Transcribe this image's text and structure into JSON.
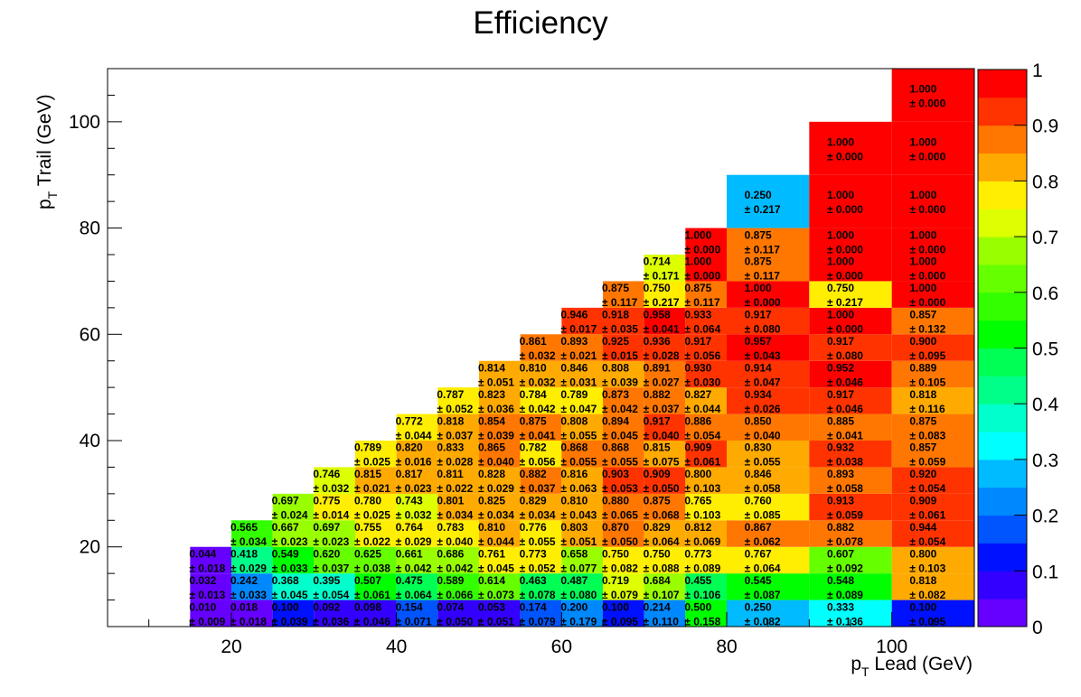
{
  "chart_data": {
    "type": "heatmap",
    "title": "Efficiency",
    "xlabel": {
      "p": "p",
      "sub": "T",
      "rest": " Lead (GeV)"
    },
    "ylabel": {
      "p": "p",
      "sub": "T",
      "rest": " Trail (GeV)"
    },
    "xlim": [
      5,
      110
    ],
    "ylim": [
      5,
      110
    ],
    "zlim": [
      0,
      1
    ],
    "x_ticks": [
      "20",
      "40",
      "60",
      "80",
      "100"
    ],
    "y_ticks": [
      "20",
      "40",
      "60",
      "80",
      "100"
    ],
    "z_ticks": [
      "0",
      "0.1",
      "0.2",
      "0.3",
      "0.4",
      "0.5",
      "0.6",
      "0.7",
      "0.8",
      "0.9",
      "1"
    ],
    "palette": [
      "#6600ff",
      "#3300ff",
      "#0011ff",
      "#0055ff",
      "#0088ff",
      "#00bbff",
      "#00ffff",
      "#00ffcc",
      "#00ff88",
      "#00ff55",
      "#00ff00",
      "#33ff00",
      "#66ff00",
      "#99ff00",
      "#ddff00",
      "#ffee00",
      "#ffaa00",
      "#ff7700",
      "#ff3300",
      "#ff0000"
    ],
    "x_edges": [
      15,
      20,
      25,
      30,
      35,
      40,
      45,
      50,
      55,
      60,
      65,
      70,
      75,
      80,
      90,
      100,
      110
    ],
    "rows": [
      {
        "ylo": 5,
        "yhi": 10,
        "first_col": 0,
        "values": [
          "0.010",
          "0.018",
          "0.100",
          "0.092",
          "0.098",
          "0.154",
          "0.074",
          "0.053",
          "0.174",
          "0.200",
          "0.100",
          "0.214",
          "0.500",
          "0.250",
          "0.333",
          "0.100"
        ],
        "errors": [
          "± 0.009",
          "± 0.018",
          "± 0.039",
          "± 0.036",
          "± 0.046",
          "± 0.071",
          "± 0.050",
          "± 0.051",
          "± 0.079",
          "± 0.179",
          "± 0.095",
          "± 0.110",
          "± 0.158",
          "± 0.082",
          "± 0.136",
          "± 0.095"
        ]
      },
      {
        "ylo": 10,
        "yhi": 15,
        "first_col": 0,
        "values": [
          "0.032",
          "0.242",
          "0.368",
          "0.395",
          "0.507",
          "0.475",
          "0.589",
          "0.614",
          "0.463",
          "0.487",
          "0.719",
          "0.684",
          "0.455",
          "0.545",
          "0.548",
          "0.818"
        ],
        "errors": [
          "± 0.013",
          "± 0.033",
          "± 0.045",
          "± 0.054",
          "± 0.061",
          "± 0.064",
          "± 0.066",
          "± 0.073",
          "± 0.078",
          "± 0.080",
          "± 0.079",
          "± 0.107",
          "± 0.106",
          "± 0.087",
          "± 0.089",
          "± 0.082"
        ]
      },
      {
        "ylo": 15,
        "yhi": 20,
        "first_col": 0,
        "values": [
          "0.044",
          "0.418",
          "0.549",
          "0.620",
          "0.625",
          "0.661",
          "0.686",
          "0.761",
          "0.773",
          "0.658",
          "0.750",
          "0.750",
          "0.773",
          "0.767",
          "0.607",
          "0.800"
        ],
        "errors": [
          "± 0.018",
          "± 0.029",
          "± 0.033",
          "± 0.037",
          "± 0.038",
          "± 0.042",
          "± 0.042",
          "± 0.045",
          "± 0.052",
          "± 0.077",
          "± 0.082",
          "± 0.088",
          "± 0.089",
          "± 0.064",
          "± 0.092",
          "± 0.103"
        ]
      },
      {
        "ylo": 20,
        "yhi": 25,
        "first_col": 1,
        "values": [
          "0.565",
          "0.667",
          "0.697",
          "0.755",
          "0.764",
          "0.783",
          "0.810",
          "0.776",
          "0.803",
          "0.870",
          "0.829",
          "0.812",
          "0.867",
          "0.882",
          "0.944"
        ],
        "errors": [
          "± 0.034",
          "± 0.023",
          "± 0.023",
          "± 0.022",
          "± 0.029",
          "± 0.040",
          "± 0.044",
          "± 0.055",
          "± 0.051",
          "± 0.050",
          "± 0.064",
          "± 0.069",
          "± 0.062",
          "± 0.078",
          "± 0.054"
        ]
      },
      {
        "ylo": 25,
        "yhi": 30,
        "first_col": 2,
        "values": [
          "0.697",
          "0.775",
          "0.780",
          "0.743",
          "0.801",
          "0.825",
          "0.829",
          "0.810",
          "0.880",
          "0.875",
          "0.765",
          "0.760",
          "0.913",
          "0.909"
        ],
        "errors": [
          "± 0.024",
          "± 0.014",
          "± 0.025",
          "± 0.032",
          "± 0.034",
          "± 0.034",
          "± 0.034",
          "± 0.043",
          "± 0.065",
          "± 0.068",
          "± 0.103",
          "± 0.085",
          "± 0.059",
          "± 0.061"
        ]
      },
      {
        "ylo": 30,
        "yhi": 35,
        "first_col": 3,
        "values": [
          "0.746",
          "0.815",
          "0.817",
          "0.811",
          "0.828",
          "0.882",
          "0.816",
          "0.903",
          "0.909",
          "0.800",
          "0.846",
          "0.893",
          "0.920"
        ],
        "errors": [
          "± 0.032",
          "± 0.021",
          "± 0.023",
          "± 0.022",
          "± 0.029",
          "± 0.037",
          "± 0.063",
          "± 0.053",
          "± 0.050",
          "± 0.103",
          "± 0.058",
          "± 0.058",
          "± 0.054"
        ]
      },
      {
        "ylo": 35,
        "yhi": 40,
        "first_col": 4,
        "values": [
          "0.789",
          "0.820",
          "0.833",
          "0.865",
          "0.782",
          "0.868",
          "0.868",
          "0.815",
          "0.909",
          "0.830",
          "0.932",
          "0.857"
        ],
        "errors": [
          "± 0.025",
          "± 0.016",
          "± 0.028",
          "± 0.040",
          "± 0.056",
          "± 0.055",
          "± 0.055",
          "± 0.075",
          "± 0.061",
          "± 0.055",
          "± 0.038",
          "± 0.059"
        ]
      },
      {
        "ylo": 40,
        "yhi": 45,
        "first_col": 5,
        "values": [
          "0.772",
          "0.818",
          "0.854",
          "0.875",
          "0.808",
          "0.894",
          "0.917",
          "0.886",
          "0.850",
          "0.885",
          "0.875"
        ],
        "errors": [
          "± 0.044",
          "± 0.037",
          "± 0.039",
          "± 0.041",
          "± 0.055",
          "± 0.045",
          "± 0.040",
          "± 0.054",
          "± 0.040",
          "± 0.041",
          "± 0.083"
        ]
      },
      {
        "ylo": 45,
        "yhi": 50,
        "first_col": 6,
        "values": [
          "0.787",
          "0.823",
          "0.784",
          "0.789",
          "0.873",
          "0.882",
          "0.827",
          "0.934",
          "0.917",
          "0.818"
        ],
        "errors": [
          "± 0.052",
          "± 0.036",
          "± 0.042",
          "± 0.047",
          "± 0.042",
          "± 0.037",
          "± 0.044",
          "± 0.026",
          "± 0.046",
          "± 0.116"
        ]
      },
      {
        "ylo": 50,
        "yhi": 55,
        "first_col": 7,
        "values": [
          "0.814",
          "0.810",
          "0.846",
          "0.808",
          "0.891",
          "0.930",
          "0.914",
          "0.952",
          "0.889"
        ],
        "errors": [
          "± 0.051",
          "± 0.032",
          "± 0.031",
          "± 0.039",
          "± 0.027",
          "± 0.030",
          "± 0.047",
          "± 0.046",
          "± 0.105"
        ]
      },
      {
        "ylo": 55,
        "yhi": 60,
        "first_col": 8,
        "values": [
          "0.861",
          "0.893",
          "0.925",
          "0.936",
          "0.917",
          "0.957",
          "0.917",
          "0.900"
        ],
        "errors": [
          "± 0.032",
          "± 0.021",
          "± 0.015",
          "± 0.028",
          "± 0.056",
          "± 0.043",
          "± 0.080",
          "± 0.095"
        ]
      },
      {
        "ylo": 60,
        "yhi": 65,
        "first_col": 9,
        "values": [
          "0.946",
          "0.918",
          "0.958",
          "0.933",
          "0.917",
          "1.000",
          "0.857"
        ],
        "errors": [
          "± 0.017",
          "± 0.035",
          "± 0.041",
          "± 0.064",
          "± 0.080",
          "± 0.000",
          "± 0.132"
        ]
      },
      {
        "ylo": 65,
        "yhi": 70,
        "first_col": 10,
        "values": [
          "0.875",
          "0.750",
          "0.875",
          "1.000",
          "0.750",
          "1.000"
        ],
        "errors": [
          "± 0.117",
          "± 0.217",
          "± 0.117",
          "± 0.000",
          "± 0.217",
          "± 0.000"
        ]
      },
      {
        "ylo": 70,
        "yhi": 75,
        "first_col": 11,
        "values": [
          "0.714",
          "1.000",
          "0.875",
          "1.000",
          "1.000"
        ],
        "errors": [
          "± 0.171",
          "± 0.000",
          "± 0.117",
          "± 0.000",
          "± 0.000"
        ]
      },
      {
        "ylo": 75,
        "yhi": 80,
        "first_col": 12,
        "values": [
          "1.000",
          "0.875",
          "1.000",
          "1.000"
        ],
        "errors": [
          "± 0.000",
          "± 0.117",
          "± 0.000",
          "± 0.000"
        ]
      },
      {
        "ylo": 80,
        "yhi": 90,
        "first_col": 13,
        "values": [
          "0.250",
          "1.000",
          "1.000"
        ],
        "errors": [
          "± 0.217",
          "± 0.000",
          "± 0.000"
        ]
      },
      {
        "ylo": 90,
        "yhi": 100,
        "first_col": 14,
        "values": [
          "1.000",
          "1.000"
        ],
        "errors": [
          "± 0.000",
          "± 0.000"
        ]
      },
      {
        "ylo": 100,
        "yhi": 110,
        "first_col": 15,
        "values": [
          "1.000"
        ],
        "errors": [
          "± 0.000"
        ]
      }
    ]
  }
}
